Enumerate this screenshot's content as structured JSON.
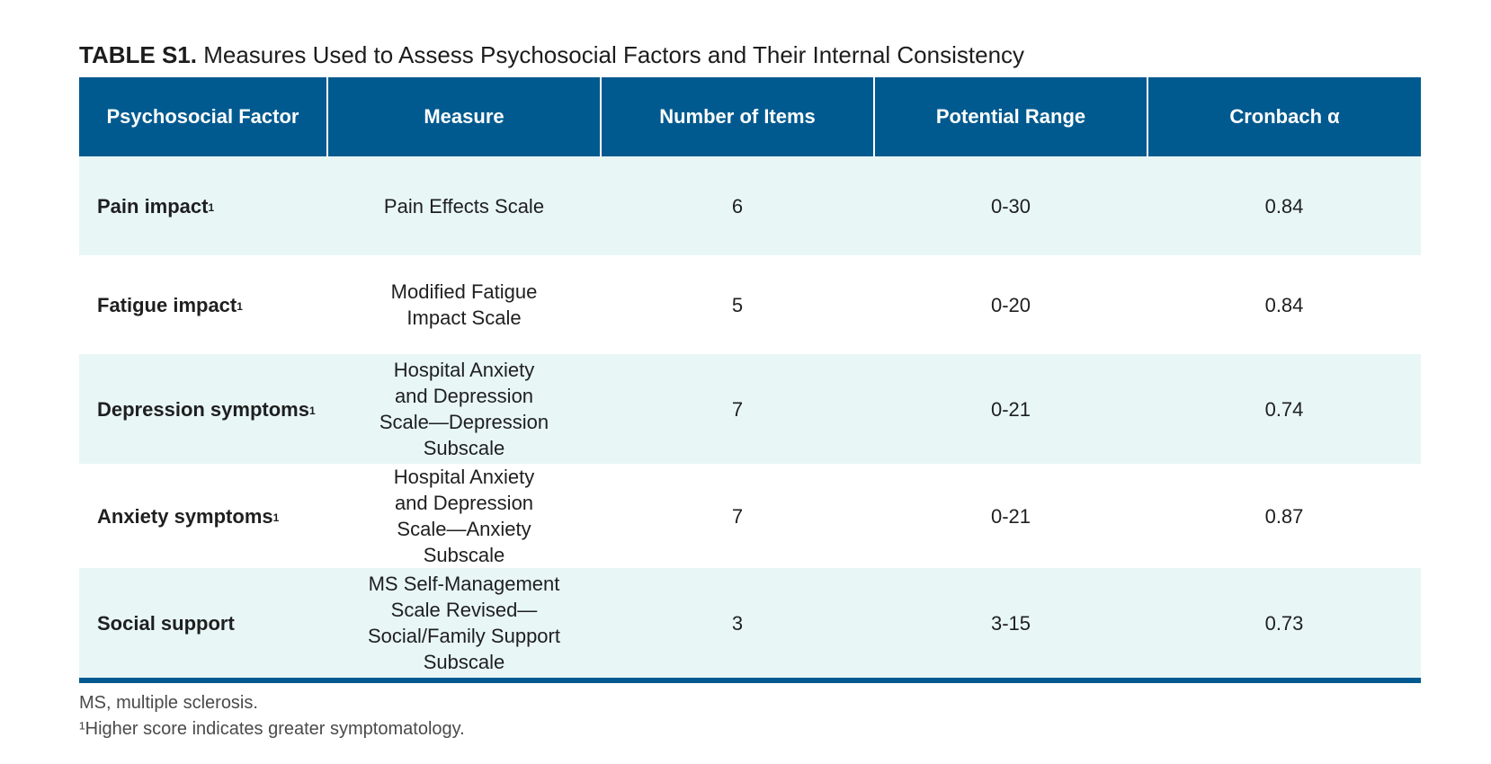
{
  "caption": {
    "label": "TABLE S1.",
    "text": " Measures Used to Assess Psychosocial Factors and Their Internal Consistency"
  },
  "headers": [
    "Psychosocial Factor",
    "Measure",
    "Number of Items",
    "Potential Range",
    "Cronbach α"
  ],
  "rows": [
    {
      "factor": "Pain impact",
      "sup": "1",
      "measure": "Pain Effects Scale",
      "items": "6",
      "range": "0-30",
      "alpha": "0.84"
    },
    {
      "factor": "Fatigue impact",
      "sup": "1",
      "measure": "Modified Fatigue Impact Scale",
      "items": "5",
      "range": "0-20",
      "alpha": "0.84"
    },
    {
      "factor": "Depression symptoms",
      "sup": "1",
      "measure": "Hospital Anxiety and Depression Scale—Depression Subscale",
      "items": "7",
      "range": "0-21",
      "alpha": "0.74"
    },
    {
      "factor": "Anxiety symptoms",
      "sup": "1",
      "measure": "Hospital Anxiety and Depression Scale—Anxiety Subscale",
      "items": "7",
      "range": "0-21",
      "alpha": "0.87"
    },
    {
      "factor": "Social support",
      "sup": "",
      "measure": "MS Self-Management Scale Revised—Social/Family Support Subscale",
      "items": "3",
      "range": "3-15",
      "alpha": "0.73"
    }
  ],
  "notes": [
    "MS, multiple sclerosis.",
    "¹Higher score indicates greater symptomatology."
  ],
  "colors": {
    "header_bg": "#005a8f",
    "row_shade": "#e8f6f6"
  }
}
